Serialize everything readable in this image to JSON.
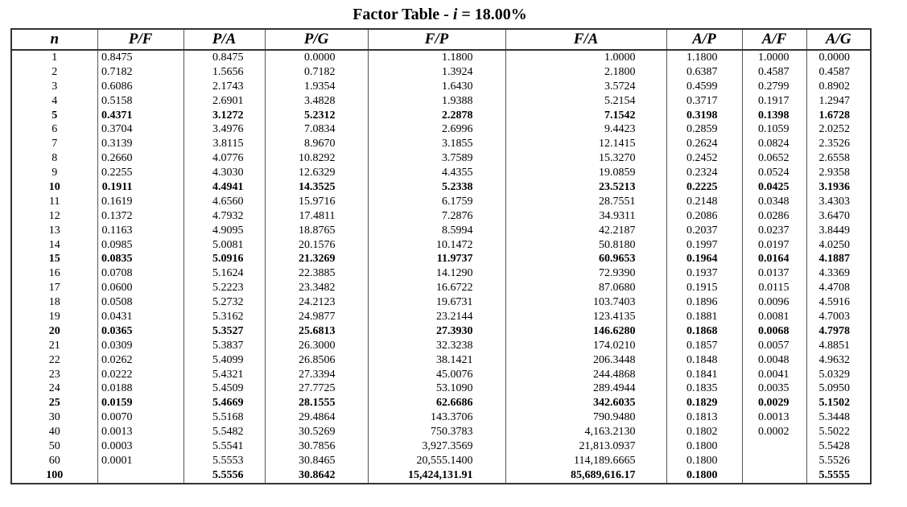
{
  "title": {
    "prefix": "Factor Table - ",
    "variable": "i",
    "suffix": " = 18.00%"
  },
  "columns": [
    "n",
    "P/F",
    "P/A",
    "P/G",
    "F/P",
    "F/A",
    "A/P",
    "A/F",
    "A/G"
  ],
  "rows": [
    {
      "bold": false,
      "cells": [
        "1",
        "0.8475",
        "0.8475",
        "0.0000",
        "1.1800",
        "1.0000",
        "1.1800",
        "1.0000",
        "0.0000"
      ]
    },
    {
      "bold": false,
      "cells": [
        "2",
        "0.7182",
        "1.5656",
        "0.7182",
        "1.3924",
        "2.1800",
        "0.6387",
        "0.4587",
        "0.4587"
      ]
    },
    {
      "bold": false,
      "cells": [
        "3",
        "0.6086",
        "2.1743",
        "1.9354",
        "1.6430",
        "3.5724",
        "0.4599",
        "0.2799",
        "0.8902"
      ]
    },
    {
      "bold": false,
      "cells": [
        "4",
        "0.5158",
        "2.6901",
        "3.4828",
        "1.9388",
        "5.2154",
        "0.3717",
        "0.1917",
        "1.2947"
      ]
    },
    {
      "bold": true,
      "cells": [
        "5",
        "0.4371",
        "3.1272",
        "5.2312",
        "2.2878",
        "7.1542",
        "0.3198",
        "0.1398",
        "1.6728"
      ]
    },
    {
      "bold": false,
      "cells": [
        "6",
        "0.3704",
        "3.4976",
        "7.0834",
        "2.6996",
        "9.4423",
        "0.2859",
        "0.1059",
        "2.0252"
      ]
    },
    {
      "bold": false,
      "cells": [
        "7",
        "0.3139",
        "3.8115",
        "8.9670",
        "3.1855",
        "12.1415",
        "0.2624",
        "0.0824",
        "2.3526"
      ]
    },
    {
      "bold": false,
      "cells": [
        "8",
        "0.2660",
        "4.0776",
        "10.8292",
        "3.7589",
        "15.3270",
        "0.2452",
        "0.0652",
        "2.6558"
      ]
    },
    {
      "bold": false,
      "cells": [
        "9",
        "0.2255",
        "4.3030",
        "12.6329",
        "4.4355",
        "19.0859",
        "0.2324",
        "0.0524",
        "2.9358"
      ]
    },
    {
      "bold": true,
      "cells": [
        "10",
        "0.1911",
        "4.4941",
        "14.3525",
        "5.2338",
        "23.5213",
        "0.2225",
        "0.0425",
        "3.1936"
      ]
    },
    {
      "bold": false,
      "cells": [
        "11",
        "0.1619",
        "4.6560",
        "15.9716",
        "6.1759",
        "28.7551",
        "0.2148",
        "0.0348",
        "3.4303"
      ]
    },
    {
      "bold": false,
      "cells": [
        "12",
        "0.1372",
        "4.7932",
        "17.4811",
        "7.2876",
        "34.9311",
        "0.2086",
        "0.0286",
        "3.6470"
      ]
    },
    {
      "bold": false,
      "cells": [
        "13",
        "0.1163",
        "4.9095",
        "18.8765",
        "8.5994",
        "42.2187",
        "0.2037",
        "0.0237",
        "3.8449"
      ]
    },
    {
      "bold": false,
      "cells": [
        "14",
        "0.0985",
        "5.0081",
        "20.1576",
        "10.1472",
        "50.8180",
        "0.1997",
        "0.0197",
        "4.0250"
      ]
    },
    {
      "bold": true,
      "cells": [
        "15",
        "0.0835",
        "5.0916",
        "21.3269",
        "11.9737",
        "60.9653",
        "0.1964",
        "0.0164",
        "4.1887"
      ]
    },
    {
      "bold": false,
      "cells": [
        "16",
        "0.0708",
        "5.1624",
        "22.3885",
        "14.1290",
        "72.9390",
        "0.1937",
        "0.0137",
        "4.3369"
      ]
    },
    {
      "bold": false,
      "cells": [
        "17",
        "0.0600",
        "5.2223",
        "23.3482",
        "16.6722",
        "87.0680",
        "0.1915",
        "0.0115",
        "4.4708"
      ]
    },
    {
      "bold": false,
      "cells": [
        "18",
        "0.0508",
        "5.2732",
        "24.2123",
        "19.6731",
        "103.7403",
        "0.1896",
        "0.0096",
        "4.5916"
      ]
    },
    {
      "bold": false,
      "cells": [
        "19",
        "0.0431",
        "5.3162",
        "24.9877",
        "23.2144",
        "123.4135",
        "0.1881",
        "0.0081",
        "4.7003"
      ]
    },
    {
      "bold": true,
      "cells": [
        "20",
        "0.0365",
        "5.3527",
        "25.6813",
        "27.3930",
        "146.6280",
        "0.1868",
        "0.0068",
        "4.7978"
      ]
    },
    {
      "bold": false,
      "cells": [
        "21",
        "0.0309",
        "5.3837",
        "26.3000",
        "32.3238",
        "174.0210",
        "0.1857",
        "0.0057",
        "4.8851"
      ]
    },
    {
      "bold": false,
      "cells": [
        "22",
        "0.0262",
        "5.4099",
        "26.8506",
        "38.1421",
        "206.3448",
        "0.1848",
        "0.0048",
        "4.9632"
      ]
    },
    {
      "bold": false,
      "cells": [
        "23",
        "0.0222",
        "5.4321",
        "27.3394",
        "45.0076",
        "244.4868",
        "0.1841",
        "0.0041",
        "5.0329"
      ]
    },
    {
      "bold": false,
      "cells": [
        "24",
        "0.0188",
        "5.4509",
        "27.7725",
        "53.1090",
        "289.4944",
        "0.1835",
        "0.0035",
        "5.0950"
      ]
    },
    {
      "bold": true,
      "cells": [
        "25",
        "0.0159",
        "5.4669",
        "28.1555",
        "62.6686",
        "342.6035",
        "0.1829",
        "0.0029",
        "5.1502"
      ]
    },
    {
      "bold": false,
      "cells": [
        "30",
        "0.0070",
        "5.5168",
        "29.4864",
        "143.3706",
        "790.9480",
        "0.1813",
        "0.0013",
        "5.3448"
      ]
    },
    {
      "bold": false,
      "cells": [
        "40",
        "0.0013",
        "5.5482",
        "30.5269",
        "750.3783",
        "4,163.2130",
        "0.1802",
        "0.0002",
        "5.5022"
      ]
    },
    {
      "bold": false,
      "cells": [
        "50",
        "0.0003",
        "5.5541",
        "30.7856",
        "3,927.3569",
        "21,813.0937",
        "0.1800",
        "",
        "5.5428"
      ]
    },
    {
      "bold": false,
      "cells": [
        "60",
        "0.0001",
        "5.5553",
        "30.8465",
        "20,555.1400",
        "114,189.6665",
        "0.1800",
        "",
        "5.5526"
      ]
    },
    {
      "bold": true,
      "cells": [
        "100",
        "",
        "5.5556",
        "30.8642",
        "15,424,131.91",
        "85,689,616.17",
        "0.1800",
        "",
        "5.5555"
      ]
    }
  ]
}
